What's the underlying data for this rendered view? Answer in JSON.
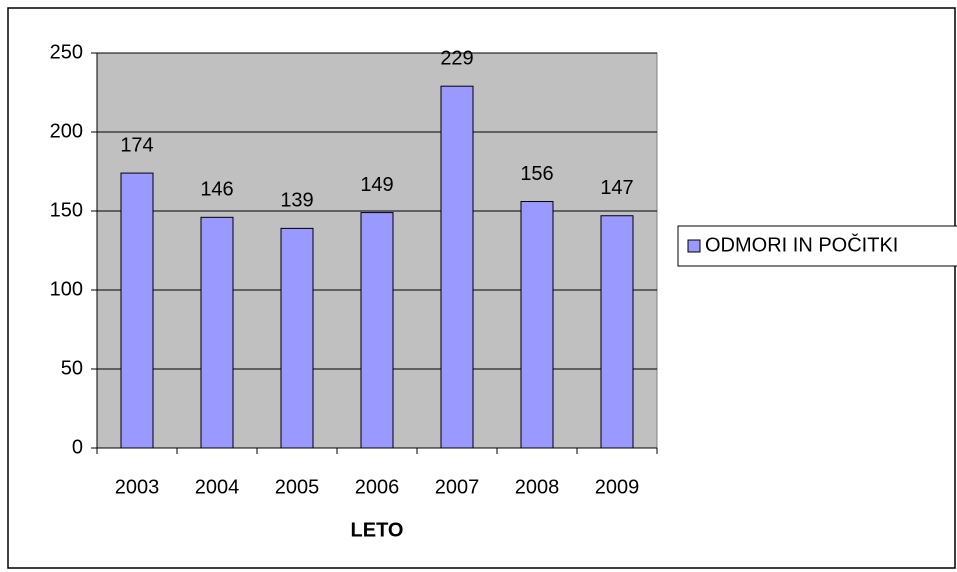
{
  "chart_data": {
    "type": "bar",
    "categories": [
      "2003",
      "2004",
      "2005",
      "2006",
      "2007",
      "2008",
      "2009"
    ],
    "series": [
      {
        "name": "ODMORI IN POČITKI",
        "color": "#9999ff",
        "values": [
          174,
          146,
          139,
          149,
          229,
          156,
          147
        ]
      }
    ],
    "x_label": "LETO",
    "ylim": [
      0,
      250
    ],
    "yticks": [
      0,
      50,
      100,
      150,
      200,
      250
    ],
    "grid": true,
    "legend": "right",
    "plot_background": "#c0c0c0"
  }
}
